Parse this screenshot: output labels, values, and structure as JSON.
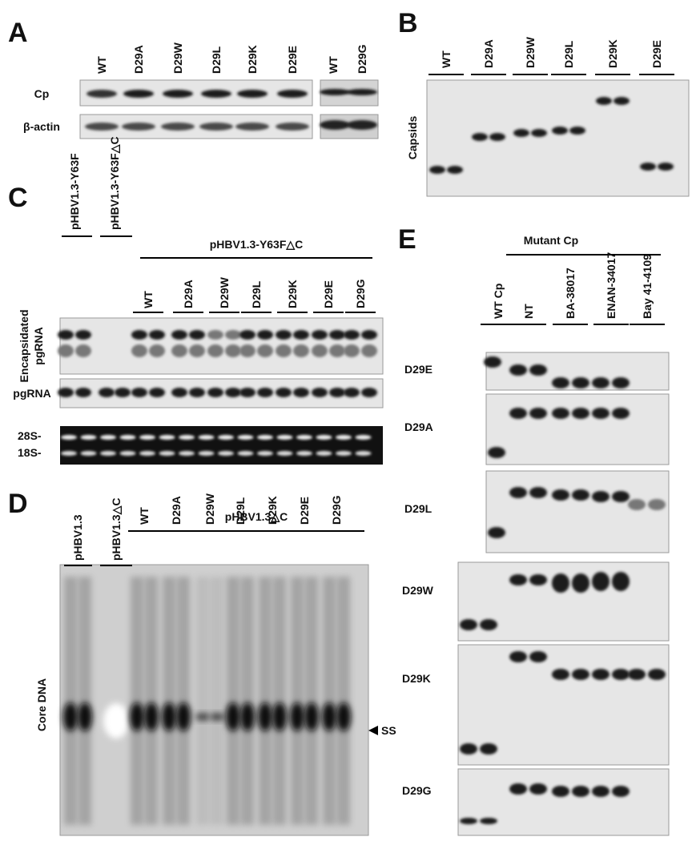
{
  "panels": {
    "A": {
      "letter": "A",
      "lanes": [
        "WT",
        "D29A",
        "D29W",
        "D29L",
        "D29K",
        "D29E",
        "WT",
        "D29G"
      ],
      "rows": [
        "Cp",
        "β-actin"
      ]
    },
    "B": {
      "letter": "B",
      "lanes": [
        "WT",
        "D29A",
        "D29W",
        "D29L",
        "D29K",
        "D29E"
      ],
      "y_label": "Capsids"
    },
    "C": {
      "letter": "C",
      "lanes": [
        "pHBV1.3-Y63F",
        "pHBV1.3-Y63F△C",
        "WT",
        "D29A",
        "D29W",
        "D29L",
        "D29K",
        "D29E",
        "D29G"
      ],
      "group_label": "pHBV1.3-Y63F△C",
      "rows": [
        [
          "Encapsidated",
          "pgRNA"
        ],
        "pgRNA"
      ],
      "markers": [
        "28S-",
        "18S-"
      ]
    },
    "D": {
      "letter": "D",
      "lanes": [
        "pHBV1.3",
        "pHBV1.3△C",
        "WT",
        "D29A",
        "D29W",
        "D29L",
        "D29K",
        "D29E",
        "D29G"
      ],
      "group_label": "pHBV1.3△C",
      "y_label": "Core DNA",
      "arrow_label": "SS"
    },
    "E": {
      "letter": "E",
      "group_label": "Mutant Cp",
      "lanes": [
        "WT Cp",
        "NT",
        "BA-38017",
        "ENAN-34017",
        "Bay 41-4109"
      ],
      "rows": [
        "D29E",
        "D29A",
        "D29L",
        "D29W",
        "D29K",
        "D29G"
      ]
    }
  }
}
